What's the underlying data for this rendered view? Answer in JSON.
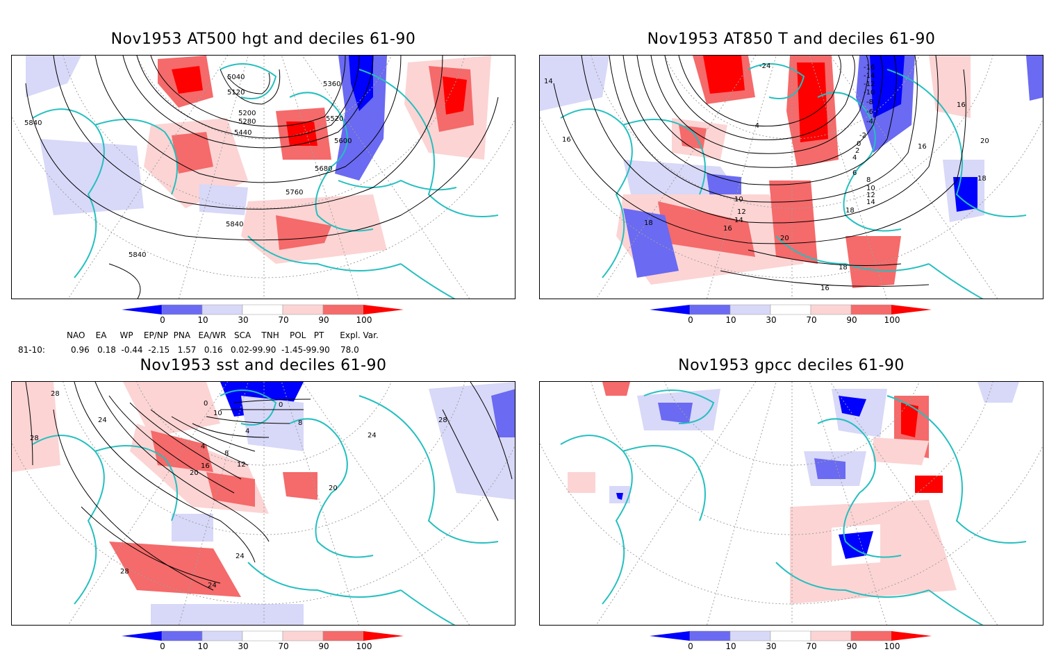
{
  "panels": [
    {
      "id": "p1",
      "title": "Nov1953 AT500 hgt and deciles 61-90",
      "contour_labels": [
        "5040",
        "5120",
        "5200",
        "5280",
        "5360",
        "5440",
        "5520",
        "5600",
        "5680",
        "5760",
        "5840",
        "5840",
        "5840"
      ]
    },
    {
      "id": "p2",
      "title": "Nov1953 AT850 T and deciles 61-90",
      "contour_labels": [
        "-24",
        "-16",
        "-14",
        "-12",
        "-10",
        "-8",
        "-6",
        "-4",
        "-2",
        "0",
        "2",
        "4",
        "6",
        "8",
        "10",
        "12",
        "14",
        "16",
        "18",
        "20",
        "14",
        "16",
        "16",
        "18",
        "16",
        "-4",
        "10",
        "12",
        "14",
        "16",
        "18",
        "20",
        "18",
        "16"
      ]
    },
    {
      "id": "p3",
      "title": "Nov1953 sst and deciles 61-90",
      "contour_labels": [
        "28",
        "24",
        "28",
        "24",
        "20",
        "16",
        "12",
        "8",
        "4",
        "0",
        "0",
        "4",
        "8",
        "10",
        "20",
        "24",
        "28",
        "28",
        "24"
      ]
    },
    {
      "id": "p4",
      "title": "Nov1953 gpcc deciles 61-90",
      "contour_labels": []
    }
  ],
  "colorbar": {
    "ticks": [
      "0",
      "10",
      "30",
      "70",
      "90",
      "100"
    ],
    "colors": [
      "#0000ff",
      "#6a6af2",
      "#d8d8f8",
      "#ffffff",
      "#fcd4d4",
      "#f56a6a",
      "#ff0000"
    ]
  },
  "indices": {
    "headers": "NAO    EA     WP    EP/NP  PNA   EA/WR   SCA    TNH    POL   PT      Expl. Var.",
    "row_label": "81-10:",
    "values": "0.96   0.18  -0.44  -2.15   1.57   0.16   0.02-99.90  -1.45-99.90    78.0"
  },
  "colors": {
    "coast": "#25bfbf",
    "contour": "#000000",
    "grid": "#a0a0a0"
  }
}
